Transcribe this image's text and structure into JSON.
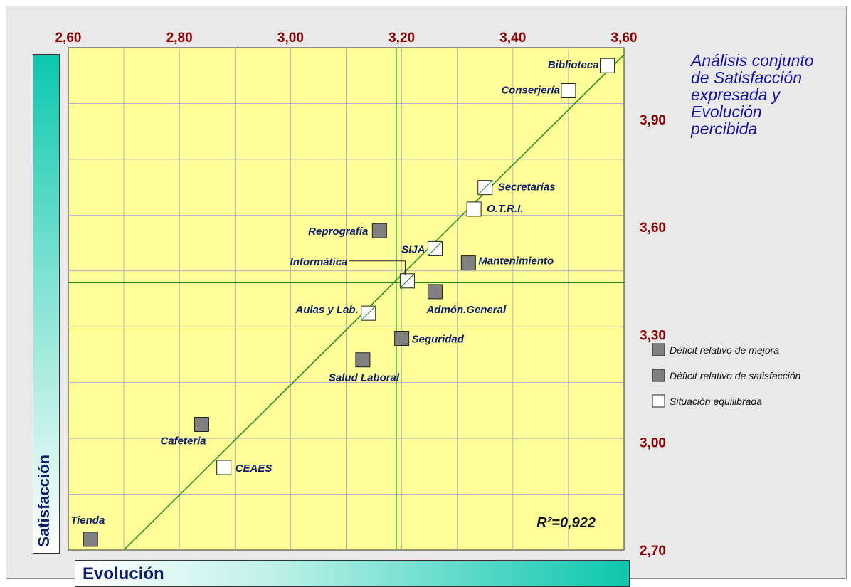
{
  "title": "Análisis conjunto\nde Satisfacción\nexpresada y\nEvolución\npercibida",
  "chart_data": {
    "type": "scatter",
    "xlabel": "Evolución",
    "ylabel": "Satisfacción",
    "xlim": [
      2.6,
      3.6
    ],
    "ylim": [
      2.7,
      4.1
    ],
    "x_ticks": [
      "2,60",
      "2,80",
      "3,00",
      "3,20",
      "3,40",
      "3,60"
    ],
    "x_tick_values": [
      2.6,
      2.8,
      3.0,
      3.2,
      3.4,
      3.6
    ],
    "y_ticks": [
      "3,90",
      "3,60",
      "3,30",
      "3,00",
      "2,70"
    ],
    "y_tick_values": [
      3.9,
      3.6,
      3.3,
      3.0,
      2.7
    ],
    "mean_x": 3.19,
    "mean_y": 3.445,
    "regression_line": [
      [
        2.7,
        2.7
      ],
      [
        3.6,
        4.08
      ]
    ],
    "r2_label": "R²=0,922",
    "points": [
      {
        "label": "Biblioteca",
        "x": 3.57,
        "y": 4.05,
        "category": "Situación equilibrada"
      },
      {
        "label": "Conserjería",
        "x": 3.5,
        "y": 3.98,
        "category": "Situación equilibrada"
      },
      {
        "label": "Secretarías",
        "x": 3.35,
        "y": 3.71,
        "category": "Situación equilibrada"
      },
      {
        "label": "O.T.R.I.",
        "x": 3.33,
        "y": 3.65,
        "category": "Situación equilibrada"
      },
      {
        "label": "Reprografía",
        "x": 3.16,
        "y": 3.59,
        "category": "Déficit relativo de satisfacción"
      },
      {
        "label": "SIJA",
        "x": 3.26,
        "y": 3.54,
        "category": "Situación equilibrada"
      },
      {
        "label": "Mantenimiento",
        "x": 3.32,
        "y": 3.5,
        "category": "Déficit relativo de mejora"
      },
      {
        "label": "Informática",
        "x": 3.21,
        "y": 3.45,
        "category": "Situación equilibrada"
      },
      {
        "label": "Admón.General",
        "x": 3.26,
        "y": 3.42,
        "category": "Déficit relativo de mejora"
      },
      {
        "label": "Aulas y Lab.",
        "x": 3.14,
        "y": 3.36,
        "category": "Situación equilibrada"
      },
      {
        "label": "Seguridad",
        "x": 3.2,
        "y": 3.29,
        "category": "Déficit relativo de mejora"
      },
      {
        "label": "Salud Laboral",
        "x": 3.13,
        "y": 3.23,
        "category": "Déficit relativo de mejora"
      },
      {
        "label": "Cafetería",
        "x": 2.84,
        "y": 3.05,
        "category": "Déficit relativo de satisfacción"
      },
      {
        "label": "CEAES",
        "x": 2.88,
        "y": 2.93,
        "category": "Situación equilibrada"
      },
      {
        "label": "Tienda",
        "x": 2.64,
        "y": 2.73,
        "category": "Déficit relativo de satisfacción"
      }
    ],
    "legend": [
      {
        "label": "Déficit relativo de mejora",
        "color": "#808080"
      },
      {
        "label": "Déficit relativo de satisfacción",
        "color": "#808080"
      },
      {
        "label": "Situación equilibrada",
        "color": "#ffffff"
      }
    ],
    "colors": {
      "plot_bg": "#ffff99",
      "grid": "#b4b4b4",
      "lines": "#1e8c1e",
      "tick_text": "#8b0000",
      "label_text": "#0b1d6b",
      "filled_marker": "#808080",
      "open_marker": "#ffffff"
    }
  }
}
